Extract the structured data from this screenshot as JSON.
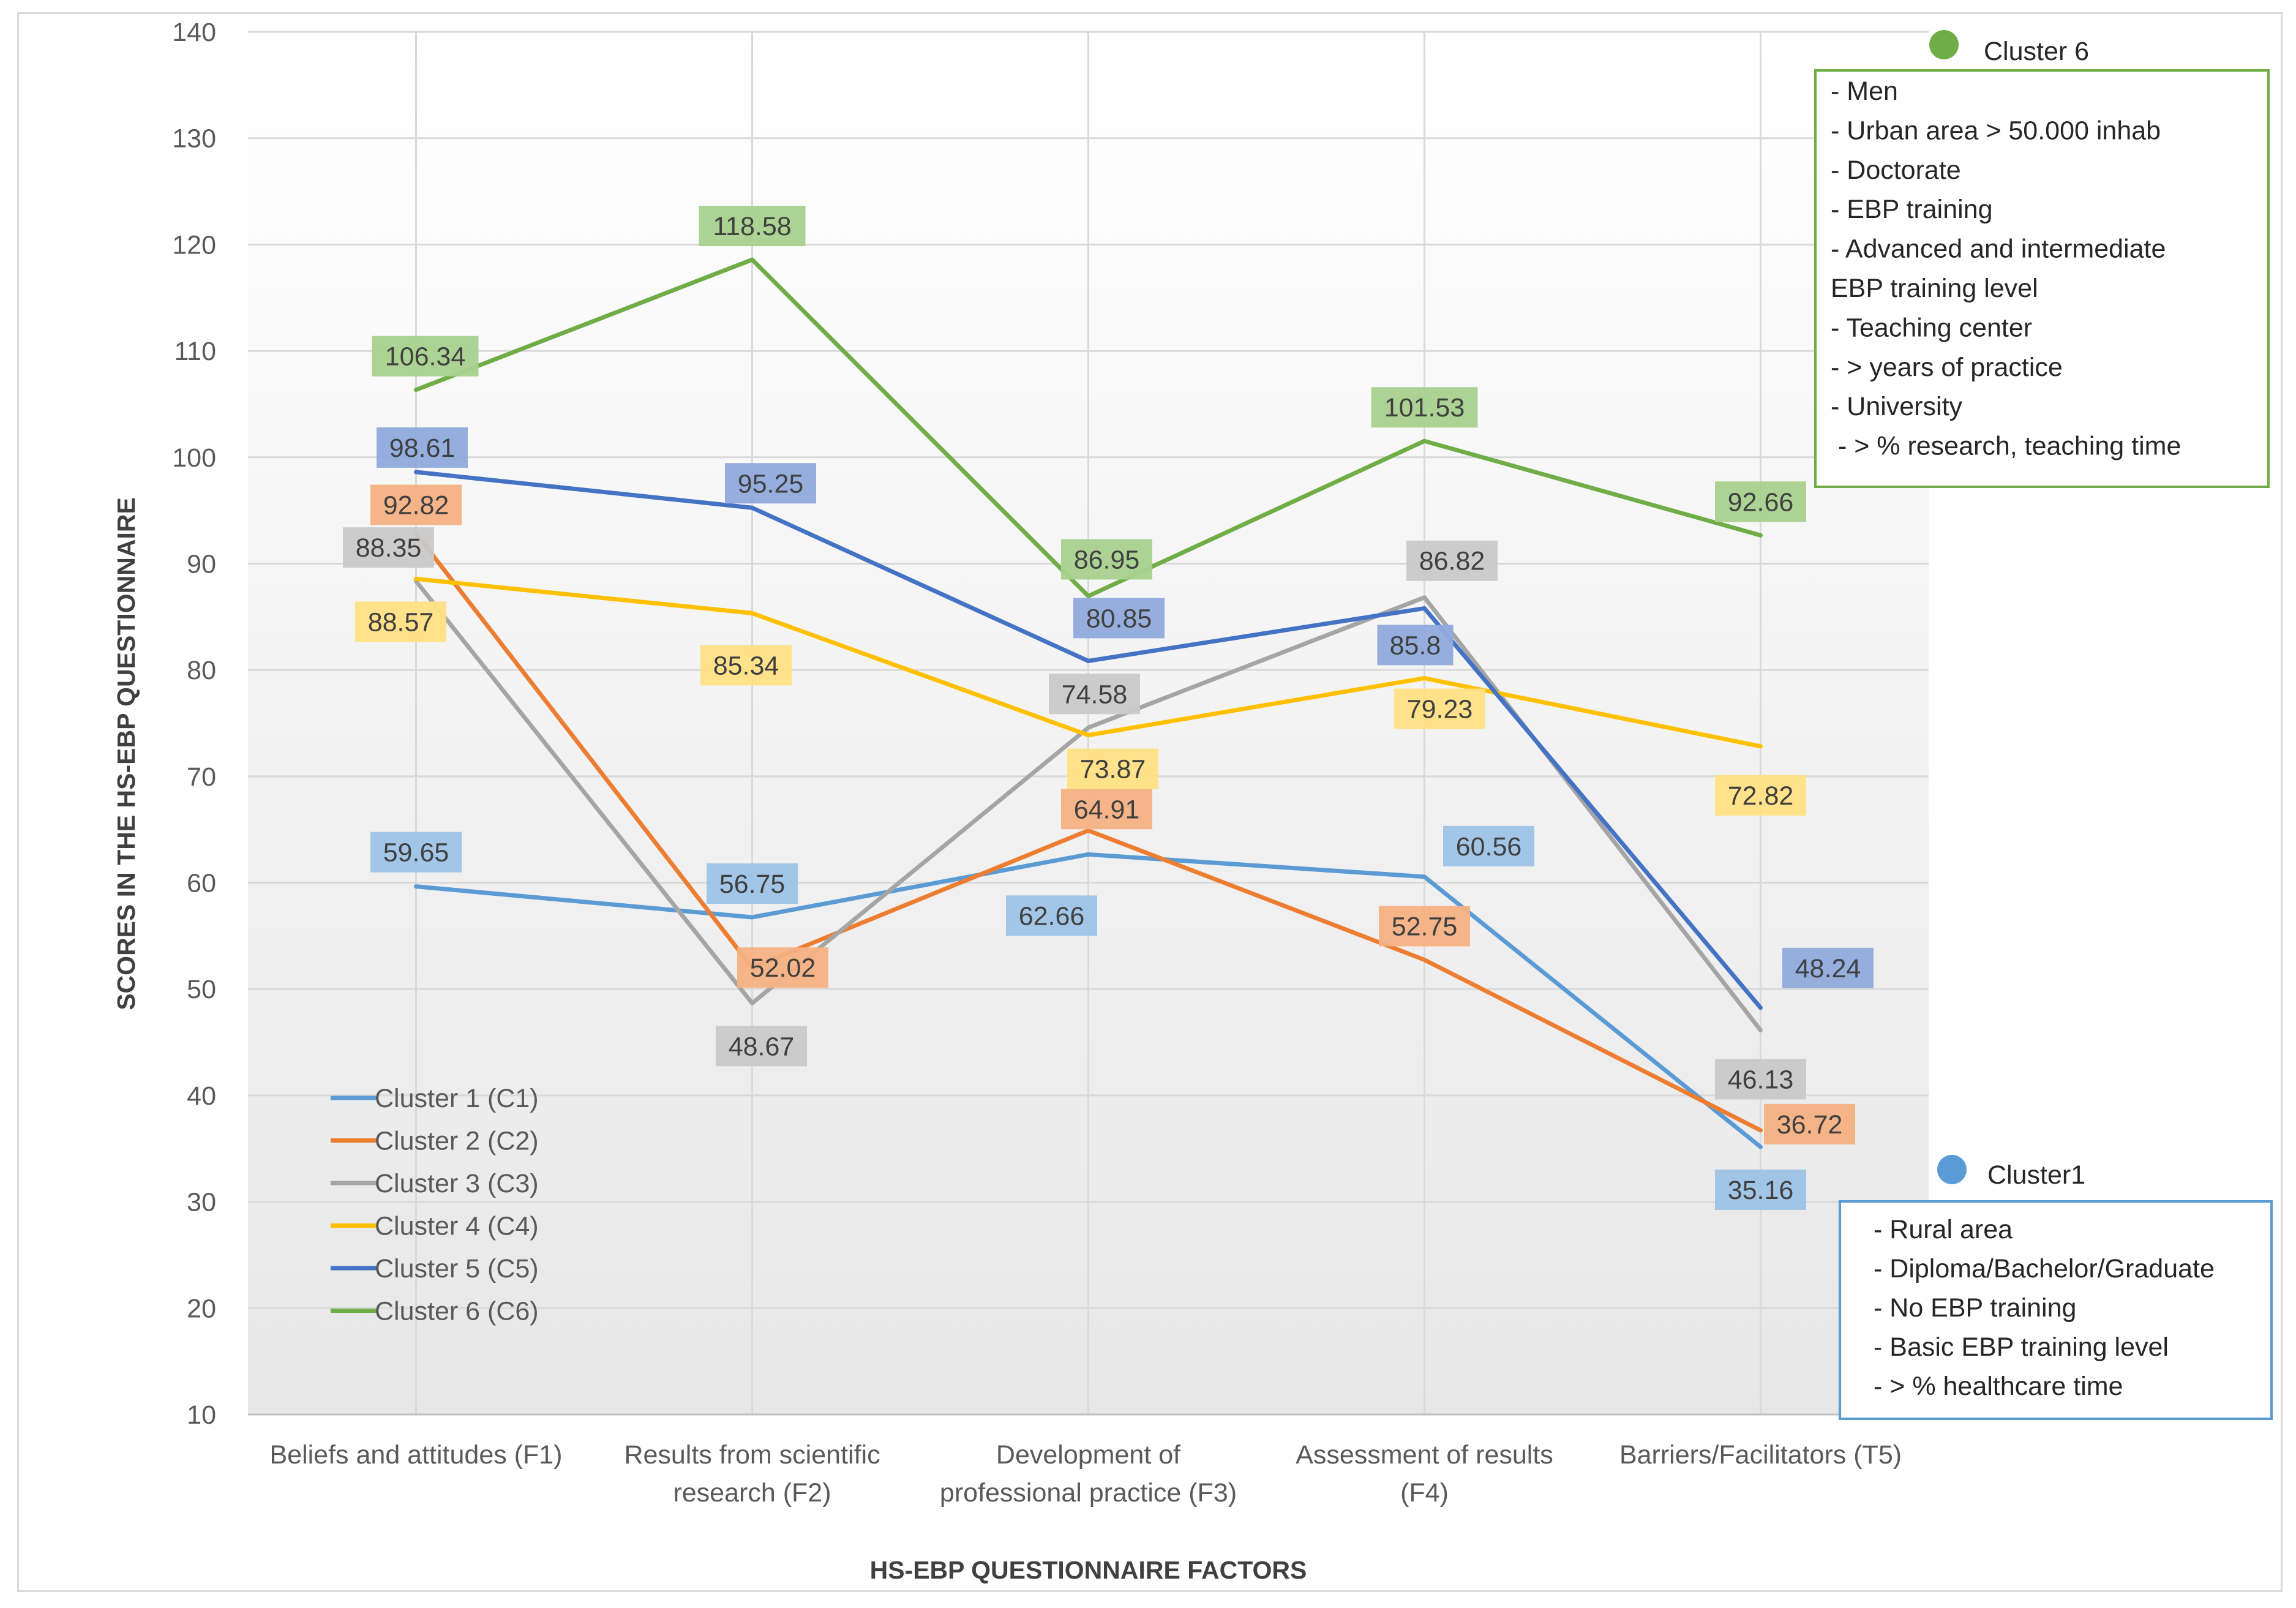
{
  "chart_data": {
    "type": "line",
    "xlabel": "HS-EBP QUESTIONNAIRE FACTORS",
    "ylabel": "SCORES IN THE HS-EBP QUESTIONNAIRE",
    "ylim": [
      10,
      140
    ],
    "yticks": [
      10,
      20,
      30,
      40,
      50,
      60,
      70,
      80,
      90,
      100,
      110,
      120,
      130,
      140
    ],
    "grid": true,
    "legend_position": "lower-left",
    "categories": [
      [
        "Beliefs and attitudes (F1)"
      ],
      [
        "Results from scientific",
        "research (F2)"
      ],
      [
        "Development of",
        "professional practice (F3)"
      ],
      [
        "Assessment of results",
        "(F4)"
      ],
      [
        "Barriers/Facilitators (T5)"
      ]
    ],
    "series": [
      {
        "name": "Cluster 1 (C1)",
        "color": "#5B9BD5",
        "label_bg": "#9DC3E6",
        "values": [
          59.65,
          56.75,
          62.66,
          60.56,
          35.16
        ],
        "labels": [
          "59.65",
          "56.75",
          "62.66",
          "60.56",
          "35.16"
        ]
      },
      {
        "name": "Cluster 2 (C2)",
        "color": "#ED7D31",
        "label_bg": "#F4B183",
        "values": [
          92.82,
          52.02,
          64.91,
          52.75,
          36.72
        ],
        "labels": [
          "92.82",
          "52.02",
          "64.91",
          "52.75",
          "36.72"
        ]
      },
      {
        "name": "Cluster 3 (C3)",
        "color": "#A5A5A5",
        "label_bg": "#C9C9C9",
        "values": [
          88.35,
          48.67,
          74.58,
          86.82,
          46.13
        ],
        "labels": [
          "88.35",
          "48.67",
          "74.58",
          "86.82",
          "46.13"
        ]
      },
      {
        "name": "Cluster 4 (C4)",
        "color": "#FFC000",
        "label_bg": "#FFE083",
        "values": [
          88.57,
          85.34,
          73.87,
          79.23,
          72.82
        ],
        "labels": [
          "88.57",
          "85.34",
          "73.87",
          "79.23",
          "72.82"
        ]
      },
      {
        "name": "Cluster 5 (C5)",
        "color": "#4472C4",
        "label_bg": "#8FAADC",
        "values": [
          98.61,
          95.25,
          80.85,
          85.8,
          48.24
        ],
        "labels": [
          "98.61",
          "95.25",
          "80.85",
          "85.8",
          "48.24"
        ]
      },
      {
        "name": "Cluster 6 (C6)",
        "color": "#70AD47",
        "label_bg": "#A9D18E",
        "values": [
          106.34,
          118.58,
          86.95,
          101.53,
          92.66
        ],
        "labels": [
          "106.34",
          "118.58",
          "86.95",
          "101.53",
          "92.66"
        ]
      }
    ],
    "annotations": [
      {
        "title": "Cluster 6",
        "color": "#70AD47",
        "lines": [
          "- Men",
          "- Urban area > 50.000 inhab",
          "- Doctorate",
          "- EBP training",
          "- Advanced and intermediate",
          "EBP training level",
          "- Teaching center",
          "- > years of practice",
          "- University",
          " - > % research, teaching time"
        ]
      },
      {
        "title": "Cluster1",
        "color": "#5B9BD5",
        "lines": [
          "- Rural area",
          "- Diploma/Bachelor/Graduate",
          "- No EBP training",
          "- Basic EBP training level",
          "- > % healthcare time"
        ]
      }
    ]
  }
}
